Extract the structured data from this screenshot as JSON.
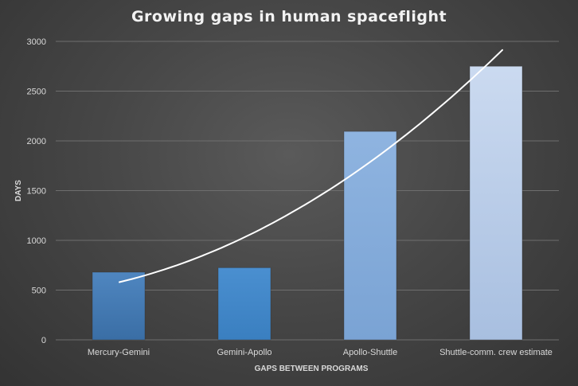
{
  "chart_data": {
    "type": "bar",
    "title": "Growing gaps in human spaceflight",
    "xlabel": "GAPS BETWEEN PROGRAMS",
    "ylabel": "DAYS",
    "categories": [
      "Mercury-Gemini",
      "Gemini-Apollo",
      "Apollo-Shuttle",
      "Shuttle-comm. crew estimate"
    ],
    "values": [
      680,
      725,
      2095,
      2750
    ],
    "ylim": [
      0,
      3000
    ],
    "yticks": [
      0,
      500,
      1000,
      1500,
      2000,
      2500,
      3000
    ],
    "grid": true,
    "legend": "none",
    "trendline": {
      "type": "polynomial",
      "color": "#ffffff"
    },
    "bar_colors": [
      [
        "#4f86c0",
        "#3a6ea5"
      ],
      [
        "#4a8fd0",
        "#3a7fc0"
      ],
      [
        "#8fb4e0",
        "#7aa3d4"
      ],
      [
        "#cbdaf0",
        "#a8bfe0"
      ]
    ]
  }
}
